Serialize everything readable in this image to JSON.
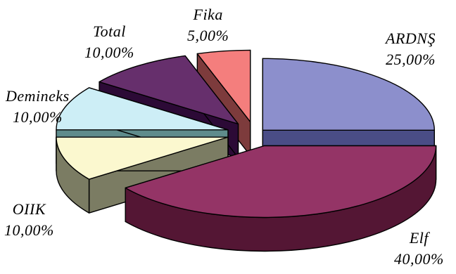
{
  "chart_data": {
    "type": "pie",
    "three_d": true,
    "exploded": true,
    "title": "",
    "slices": [
      {
        "name": "ARDNŞ",
        "value": 25,
        "label": "25,00%",
        "color": "#8c8fcc",
        "side_color": "#4a4d86"
      },
      {
        "name": "Elf",
        "value": 40,
        "label": "40,00%",
        "color": "#943466",
        "side_color": "#541634"
      },
      {
        "name": "OIIK",
        "value": 10,
        "label": "10,00%",
        "color": "#fbf8cf",
        "side_color": "#7b7c63"
      },
      {
        "name": "Demineks",
        "value": 10,
        "label": "10,00%",
        "color": "#cdeef6",
        "side_color": "#5f8c8c"
      },
      {
        "name": "Total",
        "value": 10,
        "label": "10,00%",
        "color": "#662f6c",
        "side_color": "#2c0a36"
      },
      {
        "name": "Fika",
        "value": 5,
        "label": "5,00%",
        "color": "#f47e7d",
        "side_color": "#7d3b3c"
      }
    ]
  }
}
